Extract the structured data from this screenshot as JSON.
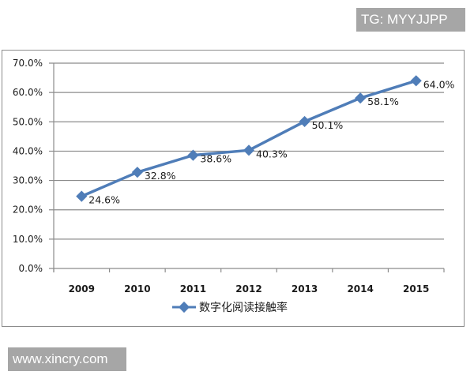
{
  "watermarks": {
    "top_right": "TG: MYYJJPP",
    "bottom_left": "www.xincry.com"
  },
  "colors": {
    "series": "#4f7db8",
    "grid": "#8c8c8c",
    "watermark_bg": "#a6a6a6"
  },
  "chart_data": {
    "type": "line",
    "title": "",
    "xlabel": "",
    "ylabel": "",
    "categories": [
      "2009",
      "2010",
      "2011",
      "2012",
      "2013",
      "2014",
      "2015"
    ],
    "series": [
      {
        "name": "数字化阅读接触率",
        "values": [
          24.6,
          32.8,
          38.6,
          40.3,
          50.1,
          58.1,
          64.0
        ],
        "labels": [
          "24.6%",
          "32.8%",
          "38.6%",
          "40.3%",
          "50.1%",
          "58.1%",
          "64.0%"
        ],
        "marker": "diamond"
      }
    ],
    "ylim": [
      0,
      70
    ],
    "yticks": [
      "0.0%",
      "10.0%",
      "20.0%",
      "30.0%",
      "40.0%",
      "50.0%",
      "60.0%",
      "70.0%"
    ],
    "grid": true,
    "legend_position": "bottom"
  }
}
